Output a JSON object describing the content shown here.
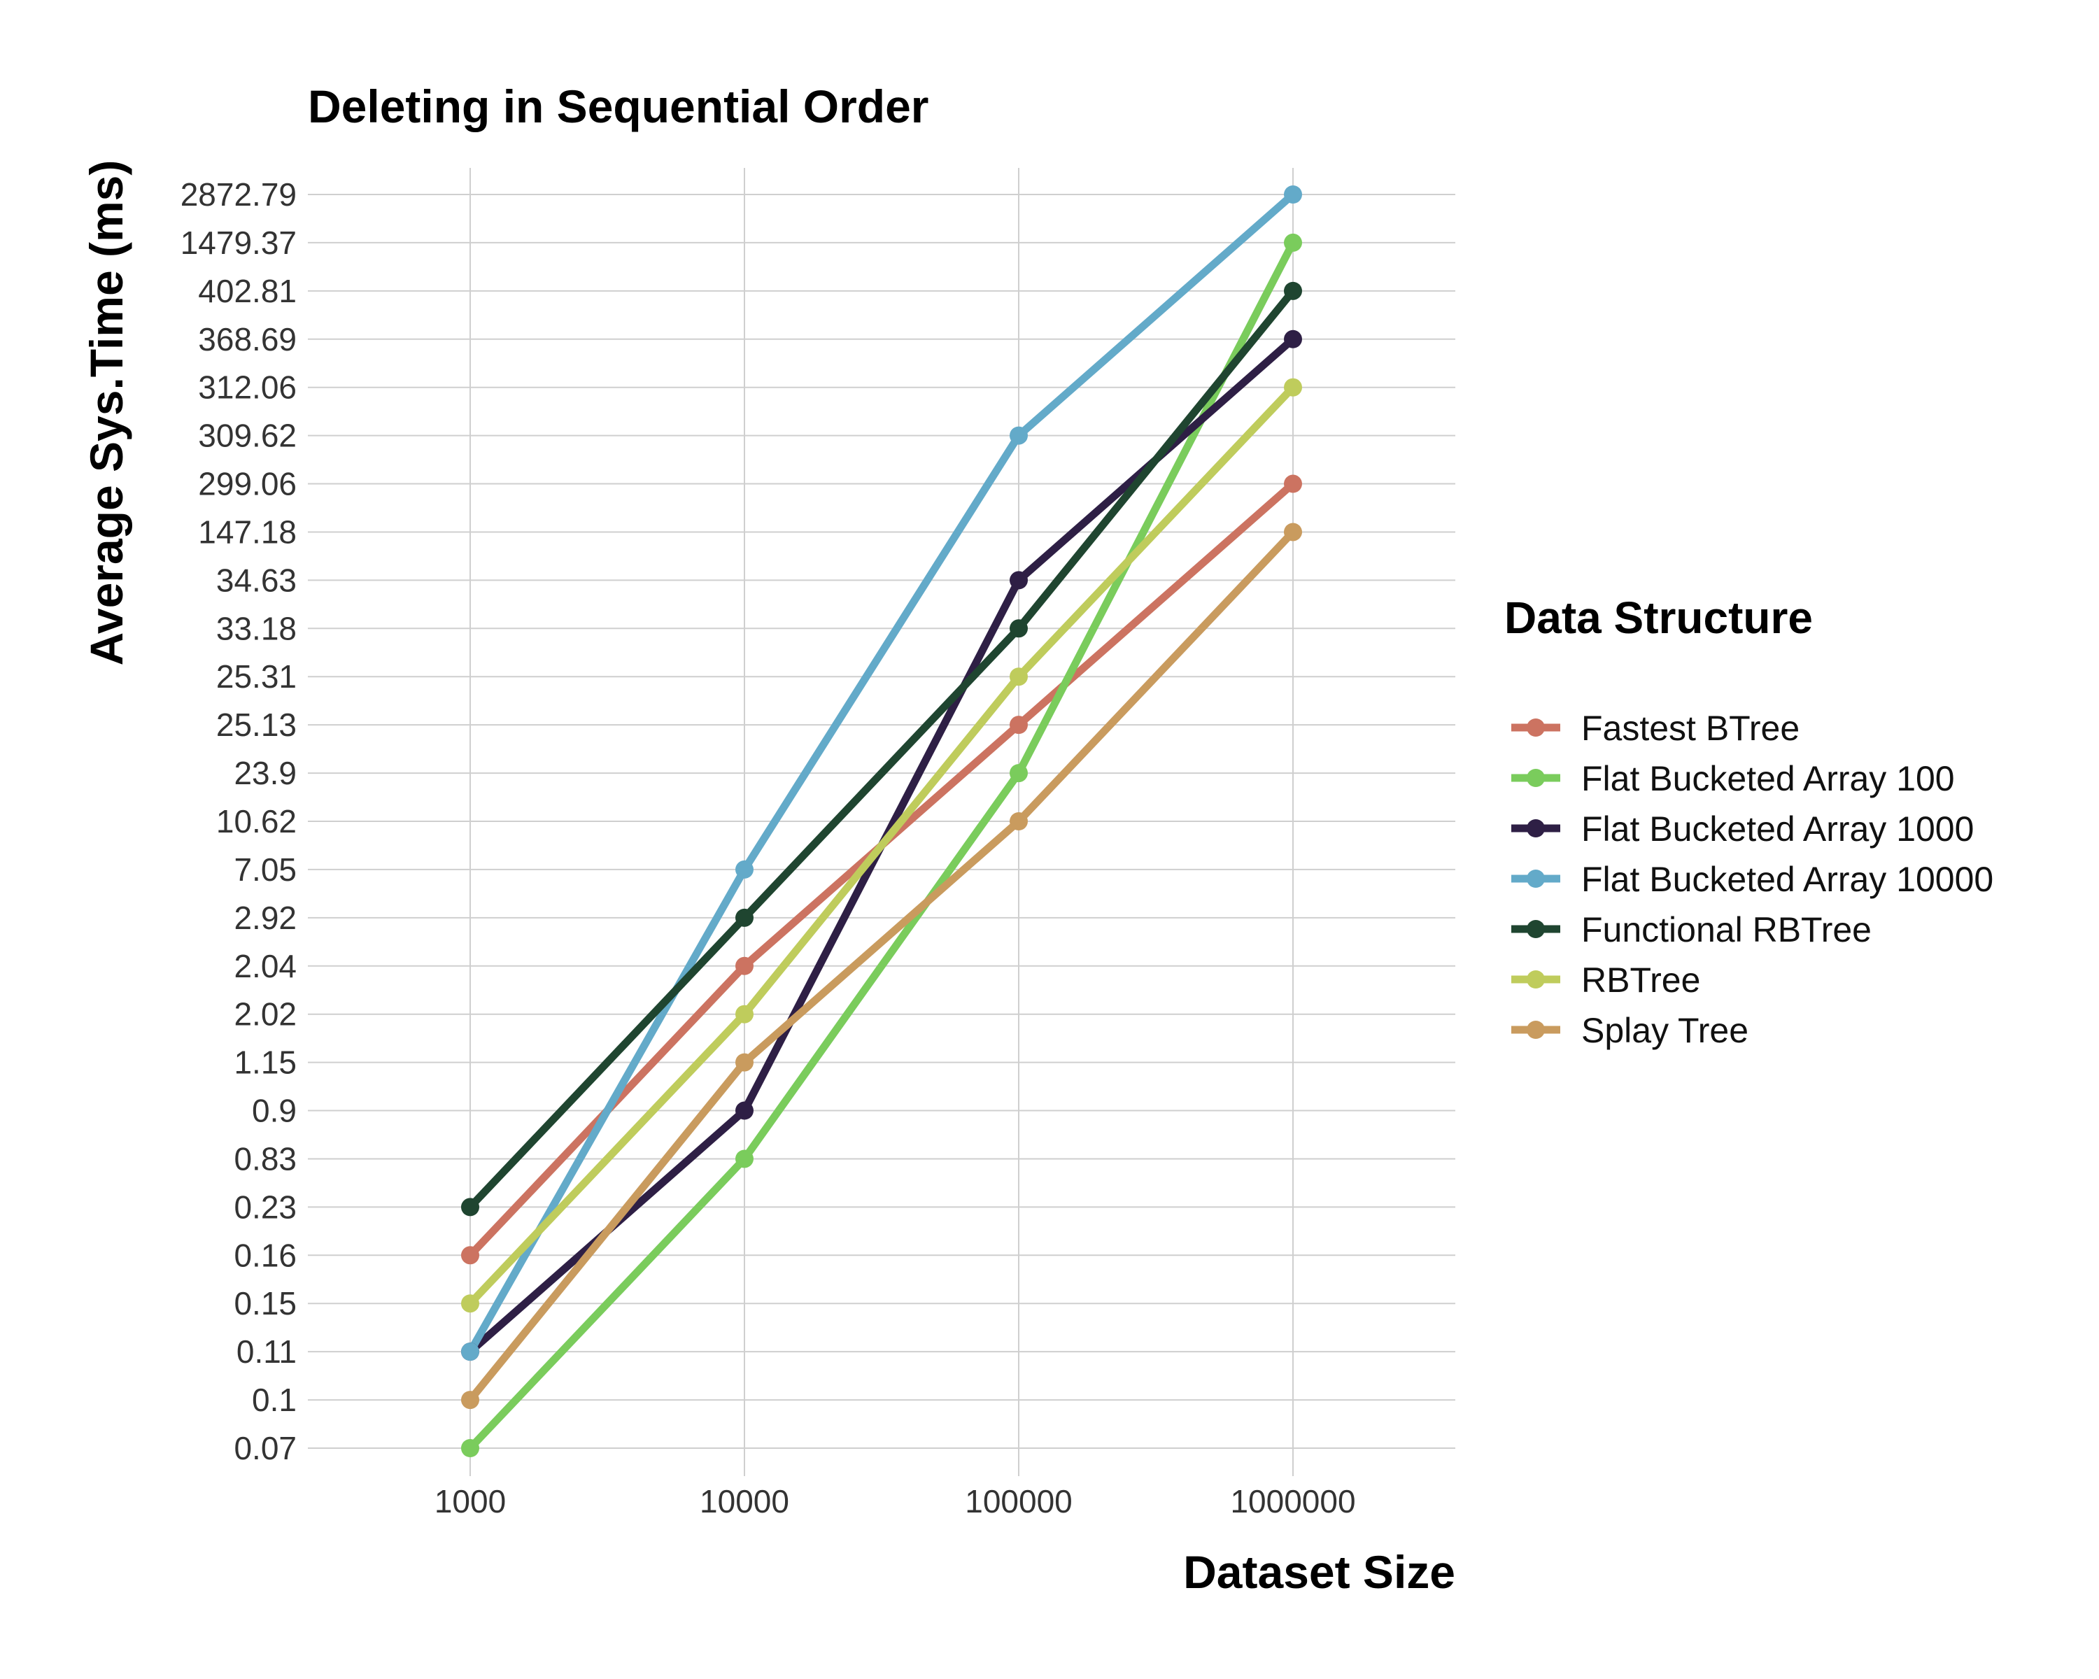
{
  "chart_data": {
    "type": "line",
    "title": "Deleting in Sequential Order",
    "xlabel": "Dataset Size",
    "ylabel": "Average Sys.Time (ms)",
    "x_scale": "categorical",
    "y_scale": "categorical",
    "x": [
      "1000",
      "10000",
      "100000",
      "1000000"
    ],
    "y_ticks": [
      "0.07",
      "0.1",
      "0.11",
      "0.15",
      "0.16",
      "0.23",
      "0.83",
      "0.9",
      "1.15",
      "2.02",
      "2.04",
      "2.92",
      "7.05",
      "10.62",
      "23.9",
      "25.13",
      "25.31",
      "33.18",
      "34.63",
      "147.18",
      "299.06",
      "309.62",
      "312.06",
      "368.69",
      "402.81",
      "1479.37",
      "2872.79"
    ],
    "grid": true,
    "legend_title": "Data Structure",
    "legend_position": "right",
    "series": [
      {
        "name": "Fastest BTree",
        "color": "#cc7361",
        "values": [
          "0.16",
          "2.04",
          "25.13",
          "299.06"
        ]
      },
      {
        "name": "Flat Bucketed Array 100",
        "color": "#7acc5c",
        "values": [
          "0.07",
          "0.83",
          "23.9",
          "1479.37"
        ]
      },
      {
        "name": "Flat Bucketed Array 1000",
        "color": "#2e1f45",
        "values": [
          "0.11",
          "0.9",
          "34.63",
          "368.69"
        ]
      },
      {
        "name": "Flat Bucketed Array 10000",
        "color": "#63aac9",
        "values": [
          "0.11",
          "7.05",
          "309.62",
          "2872.79"
        ]
      },
      {
        "name": "Functional RBTree",
        "color": "#1f4530",
        "values": [
          "0.23",
          "2.92",
          "33.18",
          "402.81"
        ]
      },
      {
        "name": "RBTree",
        "color": "#bfcc5c",
        "values": [
          "0.15",
          "2.02",
          "25.31",
          "312.06"
        ]
      },
      {
        "name": "Splay Tree",
        "color": "#c99b5e",
        "values": [
          "0.1",
          "1.15",
          "10.62",
          "147.18"
        ]
      }
    ]
  }
}
